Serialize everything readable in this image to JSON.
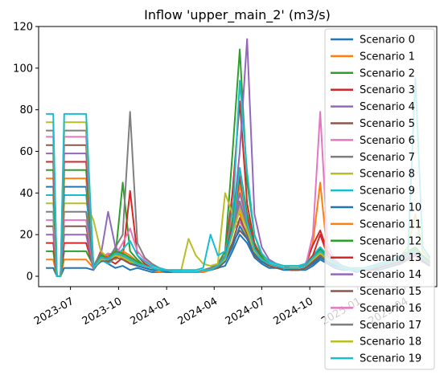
{
  "chart_data": {
    "type": "line",
    "title": "Inflow 'upper_main_2' (m3/s)",
    "xlabel": "",
    "ylabel": "",
    "ylim": [
      -5,
      120
    ],
    "xlim": [
      "2023-05-01",
      "2025-06-01"
    ],
    "yticks": [
      0,
      20,
      40,
      60,
      80,
      100,
      120
    ],
    "xticks": [
      {
        "date": "2023-07-01",
        "label": "2023-07"
      },
      {
        "date": "2023-10-01",
        "label": "2023-10"
      },
      {
        "date": "2024-01-01",
        "label": "2024-01"
      },
      {
        "date": "2024-04-01",
        "label": "2024-04"
      },
      {
        "date": "2024-07-01",
        "label": "2024-07"
      },
      {
        "date": "2024-10-01",
        "label": "2024-10"
      },
      {
        "date": "2025-01-01",
        "label": "2025-01"
      },
      {
        "date": "2025-04-01",
        "label": "2025-04"
      }
    ],
    "grid": false,
    "legend_position": "right",
    "colors": [
      "#1f77b4",
      "#ff7f0e",
      "#2ca02c",
      "#d62728",
      "#9467bd",
      "#8c564b",
      "#e377c2",
      "#7f7f7f",
      "#bcbd22",
      "#17becf"
    ],
    "x_dates": [
      "2023-05-15",
      "2023-05-29",
      "2023-06-05",
      "2023-06-12",
      "2023-06-19",
      "2023-07-03",
      "2023-07-17",
      "2023-07-31",
      "2023-08-14",
      "2023-08-28",
      "2023-09-11",
      "2023-09-25",
      "2023-10-09",
      "2023-10-23",
      "2023-11-06",
      "2023-11-20",
      "2023-12-04",
      "2023-12-18",
      "2024-01-01",
      "2024-01-15",
      "2024-01-29",
      "2024-02-12",
      "2024-02-26",
      "2024-03-11",
      "2024-03-25",
      "2024-04-08",
      "2024-04-22",
      "2024-05-06",
      "2024-05-20",
      "2024-06-03",
      "2024-06-17",
      "2024-07-01",
      "2024-07-15",
      "2024-07-29",
      "2024-08-12",
      "2024-08-26",
      "2024-09-09",
      "2024-09-23",
      "2024-10-07",
      "2024-10-21",
      "2024-11-04",
      "2024-11-18",
      "2024-12-02",
      "2024-12-16",
      "2024-12-30",
      "2025-01-13",
      "2025-01-27",
      "2025-02-10",
      "2025-02-24",
      "2025-03-10",
      "2025-03-24",
      "2025-04-07",
      "2025-04-21",
      "2025-05-05",
      "2025-05-19"
    ],
    "series": [
      {
        "name": "Scenario 0",
        "values": [
          4,
          4,
          0,
          0,
          4,
          4,
          4,
          4,
          3,
          8,
          6,
          4,
          5,
          3,
          4,
          3,
          2,
          2,
          2,
          2,
          2,
          2,
          2,
          2,
          3,
          4,
          5,
          12,
          20,
          16,
          9,
          6,
          4,
          4,
          3,
          3,
          3,
          3,
          5,
          8,
          6,
          4,
          3,
          3,
          2,
          3,
          3,
          3,
          4,
          5,
          6,
          8,
          10,
          7,
          5
        ]
      },
      {
        "name": "Scenario 1",
        "values": [
          8,
          8,
          0,
          0,
          8,
          8,
          8,
          8,
          4,
          10,
          6,
          14,
          8,
          6,
          5,
          4,
          3,
          2,
          2,
          2,
          2,
          2,
          2,
          2,
          3,
          5,
          8,
          28,
          30,
          18,
          12,
          7,
          5,
          4,
          4,
          3,
          3,
          4,
          16,
          45,
          10,
          6,
          4,
          3,
          3,
          3,
          3,
          4,
          5,
          6,
          7,
          9,
          11,
          8,
          6
        ]
      },
      {
        "name": "Scenario 2",
        "values": [
          12,
          12,
          0,
          0,
          12,
          12,
          12,
          12,
          5,
          9,
          7,
          10,
          45,
          12,
          8,
          5,
          4,
          3,
          2,
          2,
          2,
          2,
          2,
          3,
          4,
          6,
          12,
          59,
          109,
          45,
          20,
          10,
          6,
          5,
          4,
          4,
          4,
          5,
          8,
          12,
          9,
          6,
          4,
          3,
          3,
          3,
          4,
          5,
          6,
          7,
          9,
          12,
          14,
          10,
          7
        ]
      },
      {
        "name": "Scenario 3",
        "values": [
          16,
          16,
          0,
          0,
          16,
          16,
          16,
          16,
          4,
          12,
          8,
          6,
          9,
          41,
          10,
          6,
          4,
          3,
          2,
          2,
          2,
          2,
          2,
          3,
          3,
          5,
          10,
          40,
          84,
          35,
          16,
          9,
          6,
          5,
          4,
          4,
          4,
          6,
          15,
          22,
          12,
          7,
          5,
          4,
          3,
          3,
          4,
          5,
          6,
          7,
          8,
          10,
          12,
          9,
          6
        ]
      },
      {
        "name": "Scenario 4",
        "values": [
          20,
          20,
          0,
          0,
          20,
          20,
          20,
          20,
          3,
          10,
          31,
          14,
          10,
          8,
          6,
          5,
          4,
          3,
          2,
          2,
          2,
          2,
          2,
          3,
          3,
          4,
          9,
          24,
          60,
          114,
          30,
          14,
          8,
          6,
          5,
          4,
          4,
          5,
          7,
          10,
          8,
          6,
          4,
          3,
          3,
          3,
          4,
          4,
          5,
          6,
          7,
          9,
          11,
          8,
          5
        ]
      },
      {
        "name": "Scenario 5",
        "values": [
          24,
          24,
          0,
          0,
          24,
          24,
          24,
          24,
          4,
          8,
          10,
          12,
          8,
          6,
          5,
          4,
          3,
          3,
          2,
          2,
          2,
          2,
          2,
          3,
          3,
          4,
          8,
          16,
          22,
          18,
          10,
          7,
          5,
          4,
          4,
          3,
          3,
          4,
          6,
          9,
          7,
          5,
          4,
          3,
          3,
          3,
          3,
          4,
          5,
          6,
          7,
          8,
          10,
          7,
          5
        ]
      },
      {
        "name": "Scenario 6",
        "values": [
          27,
          27,
          0,
          0,
          27,
          27,
          27,
          27,
          4,
          9,
          11,
          10,
          16,
          23,
          12,
          8,
          5,
          4,
          3,
          2,
          2,
          2,
          2,
          3,
          3,
          5,
          9,
          22,
          26,
          20,
          12,
          8,
          6,
          5,
          4,
          4,
          4,
          5,
          20,
          79,
          15,
          8,
          5,
          4,
          3,
          3,
          4,
          5,
          6,
          7,
          8,
          10,
          12,
          9,
          6
        ]
      },
      {
        "name": "Scenario 7",
        "values": [
          31,
          31,
          0,
          0,
          31,
          31,
          31,
          31,
          5,
          11,
          8,
          14,
          20,
          79,
          16,
          9,
          6,
          4,
          3,
          2,
          2,
          2,
          2,
          3,
          4,
          6,
          10,
          34,
          46,
          26,
          14,
          9,
          6,
          5,
          4,
          4,
          4,
          6,
          10,
          14,
          10,
          7,
          5,
          4,
          3,
          3,
          4,
          5,
          6,
          7,
          9,
          11,
          13,
          9,
          6
        ]
      },
      {
        "name": "Scenario 8",
        "values": [
          35,
          35,
          0,
          0,
          35,
          35,
          35,
          35,
          27,
          12,
          9,
          11,
          9,
          7,
          6,
          5,
          4,
          3,
          3,
          3,
          3,
          18,
          10,
          6,
          5,
          6,
          40,
          30,
          24,
          20,
          14,
          9,
          7,
          6,
          5,
          5,
          5,
          6,
          8,
          10,
          8,
          6,
          5,
          4,
          4,
          4,
          5,
          6,
          7,
          8,
          10,
          14,
          30,
          12,
          8
        ]
      },
      {
        "name": "Scenario 9",
        "values": [
          39,
          39,
          0,
          0,
          39,
          39,
          39,
          39,
          5,
          8,
          6,
          9,
          13,
          17,
          10,
          7,
          5,
          4,
          3,
          3,
          3,
          3,
          3,
          4,
          20,
          10,
          12,
          26,
          94,
          50,
          20,
          11,
          7,
          6,
          5,
          5,
          5,
          6,
          10,
          14,
          10,
          7,
          5,
          4,
          4,
          4,
          5,
          6,
          7,
          8,
          10,
          12,
          95,
          14,
          9
        ]
      },
      {
        "name": "Scenario 10",
        "values": [
          43,
          43,
          0,
          0,
          43,
          43,
          43,
          43,
          4,
          7,
          8,
          10,
          9,
          7,
          5,
          4,
          3,
          3,
          2,
          2,
          2,
          2,
          2,
          3,
          3,
          4,
          7,
          14,
          24,
          18,
          11,
          7,
          5,
          4,
          4,
          3,
          3,
          4,
          6,
          9,
          7,
          5,
          4,
          3,
          3,
          3,
          3,
          4,
          5,
          6,
          7,
          8,
          10,
          7,
          5
        ]
      },
      {
        "name": "Scenario 11",
        "values": [
          47,
          47,
          0,
          0,
          47,
          47,
          47,
          47,
          5,
          9,
          10,
          8,
          12,
          10,
          7,
          5,
          4,
          3,
          3,
          2,
          2,
          2,
          2,
          3,
          3,
          5,
          9,
          20,
          44,
          26,
          14,
          8,
          6,
          5,
          4,
          4,
          4,
          5,
          8,
          12,
          9,
          6,
          4,
          3,
          3,
          3,
          4,
          5,
          6,
          7,
          8,
          10,
          12,
          9,
          6
        ]
      },
      {
        "name": "Scenario 12",
        "values": [
          51,
          51,
          0,
          0,
          51,
          51,
          51,
          51,
          4,
          10,
          9,
          12,
          11,
          9,
          7,
          5,
          4,
          3,
          3,
          2,
          2,
          2,
          2,
          3,
          3,
          5,
          9,
          26,
          52,
          30,
          15,
          9,
          6,
          5,
          4,
          4,
          4,
          5,
          9,
          13,
          9,
          6,
          4,
          3,
          3,
          3,
          4,
          5,
          6,
          7,
          8,
          10,
          13,
          9,
          6
        ]
      },
      {
        "name": "Scenario 13",
        "values": [
          55,
          55,
          0,
          0,
          55,
          55,
          55,
          55,
          5,
          9,
          8,
          11,
          10,
          8,
          6,
          5,
          4,
          3,
          3,
          2,
          2,
          2,
          2,
          3,
          3,
          5,
          9,
          24,
          48,
          28,
          14,
          8,
          6,
          5,
          4,
          4,
          4,
          5,
          10,
          20,
          10,
          6,
          4,
          3,
          3,
          3,
          4,
          5,
          6,
          7,
          8,
          10,
          12,
          9,
          6
        ]
      },
      {
        "name": "Scenario 14",
        "values": [
          59,
          59,
          0,
          0,
          59,
          59,
          59,
          59,
          4,
          8,
          9,
          10,
          9,
          7,
          6,
          5,
          4,
          3,
          3,
          2,
          2,
          2,
          2,
          3,
          3,
          5,
          8,
          22,
          40,
          26,
          13,
          8,
          6,
          5,
          4,
          4,
          4,
          5,
          8,
          11,
          8,
          6,
          4,
          3,
          3,
          3,
          4,
          5,
          6,
          7,
          8,
          10,
          12,
          9,
          6
        ]
      },
      {
        "name": "Scenario 15",
        "values": [
          63,
          63,
          0,
          0,
          63,
          63,
          63,
          63,
          4,
          8,
          7,
          9,
          8,
          7,
          6,
          5,
          4,
          3,
          3,
          2,
          2,
          2,
          2,
          3,
          3,
          4,
          8,
          16,
          28,
          20,
          12,
          8,
          5,
          4,
          4,
          3,
          3,
          4,
          7,
          10,
          8,
          6,
          4,
          3,
          3,
          3,
          3,
          4,
          5,
          6,
          7,
          8,
          10,
          7,
          5
        ]
      },
      {
        "name": "Scenario 16",
        "values": [
          67,
          67,
          0,
          0,
          67,
          67,
          67,
          67,
          4,
          9,
          8,
          10,
          9,
          8,
          6,
          5,
          4,
          3,
          3,
          2,
          2,
          2,
          2,
          3,
          3,
          5,
          9,
          20,
          34,
          22,
          12,
          8,
          6,
          5,
          4,
          4,
          4,
          5,
          8,
          12,
          9,
          6,
          4,
          3,
          3,
          3,
          4,
          5,
          6,
          7,
          8,
          10,
          12,
          9,
          6
        ]
      },
      {
        "name": "Scenario 17",
        "values": [
          70,
          70,
          0,
          0,
          70,
          70,
          70,
          70,
          5,
          9,
          8,
          11,
          10,
          8,
          6,
          5,
          4,
          3,
          3,
          2,
          2,
          2,
          2,
          3,
          3,
          5,
          9,
          22,
          36,
          24,
          13,
          8,
          6,
          5,
          4,
          4,
          4,
          5,
          9,
          12,
          9,
          6,
          4,
          3,
          3,
          3,
          4,
          5,
          6,
          7,
          8,
          10,
          12,
          9,
          6
        ]
      },
      {
        "name": "Scenario 18",
        "values": [
          74,
          74,
          0,
          0,
          74,
          74,
          74,
          74,
          4,
          8,
          8,
          10,
          9,
          7,
          6,
          5,
          4,
          3,
          3,
          2,
          2,
          2,
          2,
          3,
          3,
          5,
          8,
          20,
          32,
          22,
          12,
          8,
          6,
          5,
          4,
          4,
          4,
          5,
          8,
          11,
          8,
          6,
          4,
          3,
          3,
          3,
          4,
          5,
          6,
          7,
          8,
          10,
          12,
          9,
          6
        ]
      },
      {
        "name": "Scenario 19",
        "values": [
          78,
          78,
          0,
          0,
          78,
          78,
          78,
          78,
          4,
          9,
          8,
          11,
          10,
          8,
          6,
          5,
          4,
          3,
          3,
          2,
          2,
          2,
          2,
          3,
          3,
          5,
          9,
          22,
          52,
          26,
          13,
          8,
          6,
          5,
          4,
          4,
          4,
          5,
          9,
          12,
          9,
          6,
          4,
          3,
          3,
          3,
          4,
          5,
          6,
          7,
          8,
          10,
          12,
          9,
          6
        ]
      }
    ]
  }
}
